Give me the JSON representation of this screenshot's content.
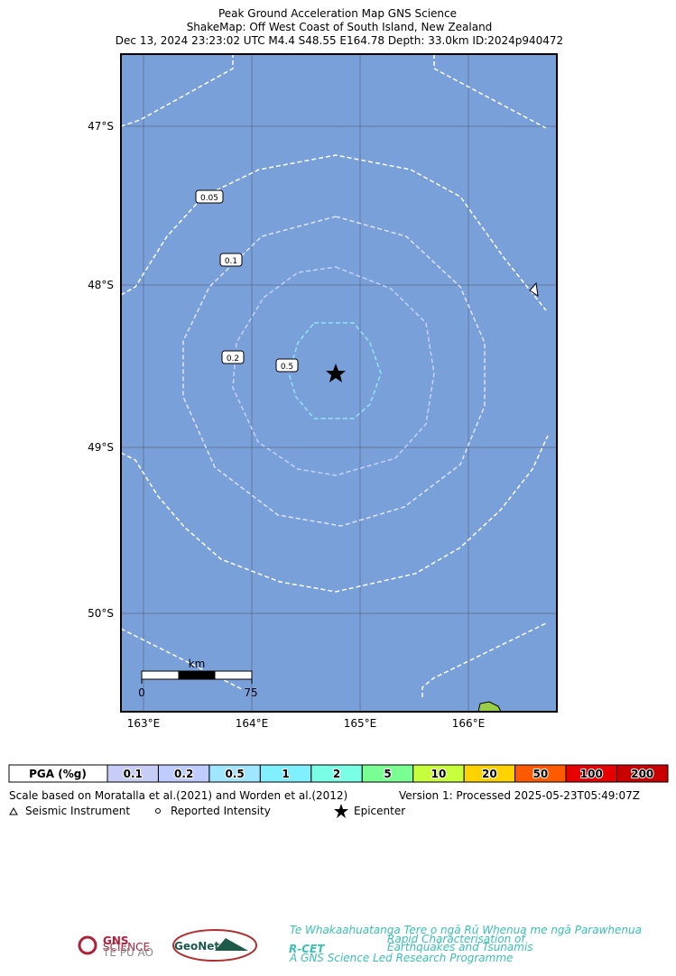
{
  "header": {
    "title_lines": [
      "Peak Ground Acceleration Map GNS Science",
      "ShakeMap: Off West Coast of South Island, New Zealand",
      "Dec 13, 2024 23:23:02 UTC M4.4 S48.55 E164.78 Depth: 33.0km ID:2024p940472"
    ]
  },
  "map": {
    "lat_labels": [
      "47°S",
      "48°S",
      "49°S",
      "50°S"
    ],
    "lon_labels": [
      "163°E",
      "164°E",
      "165°E",
      "166°E"
    ],
    "contour_labels": [
      "0.05",
      "0.1",
      "0.2",
      "0.5"
    ],
    "scale_bar": {
      "unit": "km",
      "labels": [
        "0",
        "75"
      ]
    }
  },
  "legend": {
    "pga_label": "PGA (%g)",
    "bins": [
      {
        "label": "0.1",
        "color": "#c8cdf5"
      },
      {
        "label": "0.2",
        "color": "#bfccff"
      },
      {
        "label": "0.5",
        "color": "#a0e6ff"
      },
      {
        "label": "1",
        "color": "#80f0ff"
      },
      {
        "label": "2",
        "color": "#7affe6"
      },
      {
        "label": "5",
        "color": "#7aff93"
      },
      {
        "label": "10",
        "color": "#c8ff3c"
      },
      {
        "label": "20",
        "color": "#ffd200"
      },
      {
        "label": "50",
        "color": "#ff5a00"
      },
      {
        "label": "100",
        "color": "#e60000"
      },
      {
        "label": "200",
        "color": "#c80000"
      }
    ]
  },
  "notes": {
    "scale_text": "Scale based on Moratalla et al.(2021) and Worden et al.(2012)",
    "version": "Version 1: Processed 2025-05-23T05:49:07Z",
    "symbols": [
      "Seismic Instrument",
      "Reported Intensity",
      "Epicenter"
    ]
  },
  "logos": {
    "gns": "GNS",
    "gns_sub": "SCIENCE",
    "gns_maori": "TE PŪ AO",
    "geonet": "GeoNet",
    "rcet": "R-CET",
    "rcet_maori": "Te Whakaahuatanga Tere o ngā Rū Whenua me ngā Parawhenua",
    "rcet_line1": "Rapid Characterisation of",
    "rcet_line2": "Earthquakes and Tsunamis",
    "rcet_footer": "A GNS Science Led Research Programme"
  }
}
